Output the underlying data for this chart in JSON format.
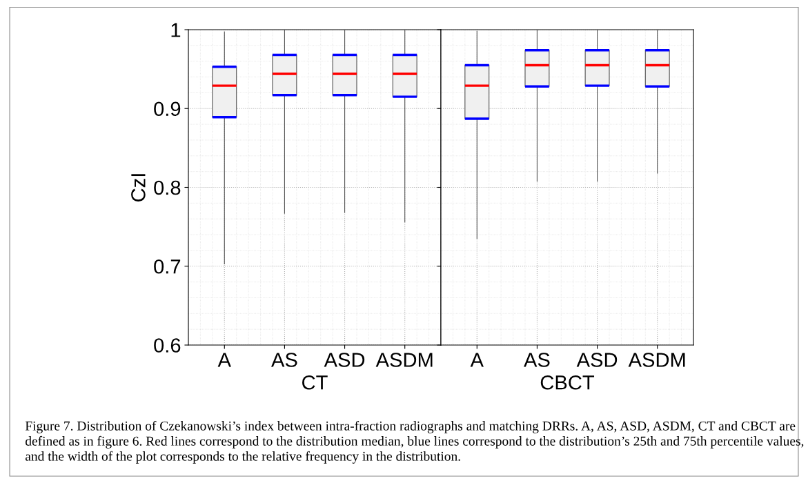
{
  "chart_data": [
    {
      "type": "box",
      "ylabel": "CzI",
      "xlabel": "CT",
      "categories": [
        "A",
        "AS",
        "ASD",
        "ASDM"
      ],
      "ylim": [
        0.6,
        1
      ],
      "yticks": [
        0.6,
        0.7,
        0.8,
        0.9,
        1
      ],
      "grid": true,
      "boxes": [
        {
          "low": 0.703,
          "q1": 0.889,
          "median": 0.929,
          "q3": 0.953,
          "high": 0.997
        },
        {
          "low": 0.767,
          "q1": 0.917,
          "median": 0.944,
          "q3": 0.968,
          "high": 0.999
        },
        {
          "low": 0.768,
          "q1": 0.917,
          "median": 0.944,
          "q3": 0.968,
          "high": 0.999
        },
        {
          "low": 0.756,
          "q1": 0.915,
          "median": 0.944,
          "q3": 0.968,
          "high": 0.999
        }
      ],
      "annotations": [
        "Figure 7. Distribution of Czekanowski’s index between intra-fraction radiographs and matching DRRs. A, AS, ASD, ASDM, CT and CBCT are defined as in figure 6. Red lines correspond to the distribution median, blue lines correspond to the distribution’s 25th and 75th percentile values, and the width of the plot corresponds to the relative frequency in the distribution."
      ]
    },
    {
      "type": "box",
      "xlabel": "CBCT",
      "categories": [
        "A",
        "AS",
        "ASD",
        "ASDM"
      ],
      "ylim": [
        0.6,
        1
      ],
      "yticks": [
        0.6,
        0.7,
        0.8,
        0.9,
        1
      ],
      "grid": true,
      "tick_labels": "x",
      "boxes": [
        {
          "low": 0.735,
          "q1": 0.887,
          "median": 0.929,
          "q3": 0.955,
          "high": 0.998
        },
        {
          "low": 0.808,
          "q1": 0.928,
          "median": 0.955,
          "q3": 0.974,
          "high": 0.999
        },
        {
          "low": 0.808,
          "q1": 0.929,
          "median": 0.955,
          "q3": 0.974,
          "high": 0.999
        },
        {
          "low": 0.818,
          "q1": 0.928,
          "median": 0.955,
          "q3": 0.974,
          "high": 0.999
        }
      ]
    }
  ]
}
